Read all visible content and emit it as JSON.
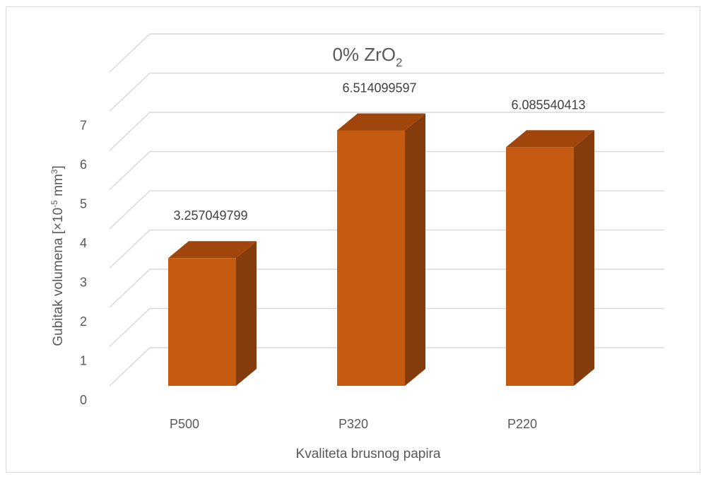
{
  "chart_data": {
    "type": "bar",
    "style": "3d-column",
    "title": {
      "main": "0% ZrO",
      "subscript": "2"
    },
    "categories": [
      "P500",
      "P320",
      "P220"
    ],
    "series": [
      {
        "values": [
          3.257049799,
          6.514099597,
          6.085540413
        ],
        "data_labels": [
          "3.257049799",
          "6.514099597",
          "6.085540413"
        ]
      }
    ],
    "xlabel": "Kvaliteta brusnog papira",
    "ylabel": {
      "prefix": "Gubitak volumena [×10",
      "exp": "-5",
      "mid": " mm",
      "exp2": "3",
      "suffix": "]"
    },
    "y_ticks": [
      "0",
      "1",
      "2",
      "3",
      "4",
      "5",
      "6",
      "7"
    ],
    "ylim": [
      0,
      8
    ],
    "grid": true,
    "legend": "none",
    "colors": {
      "bar_front": "#c55a11",
      "bar_top": "#a0460c",
      "bar_side": "#843c0c",
      "gridline": "#d9d9d9",
      "text": "#595959"
    }
  }
}
